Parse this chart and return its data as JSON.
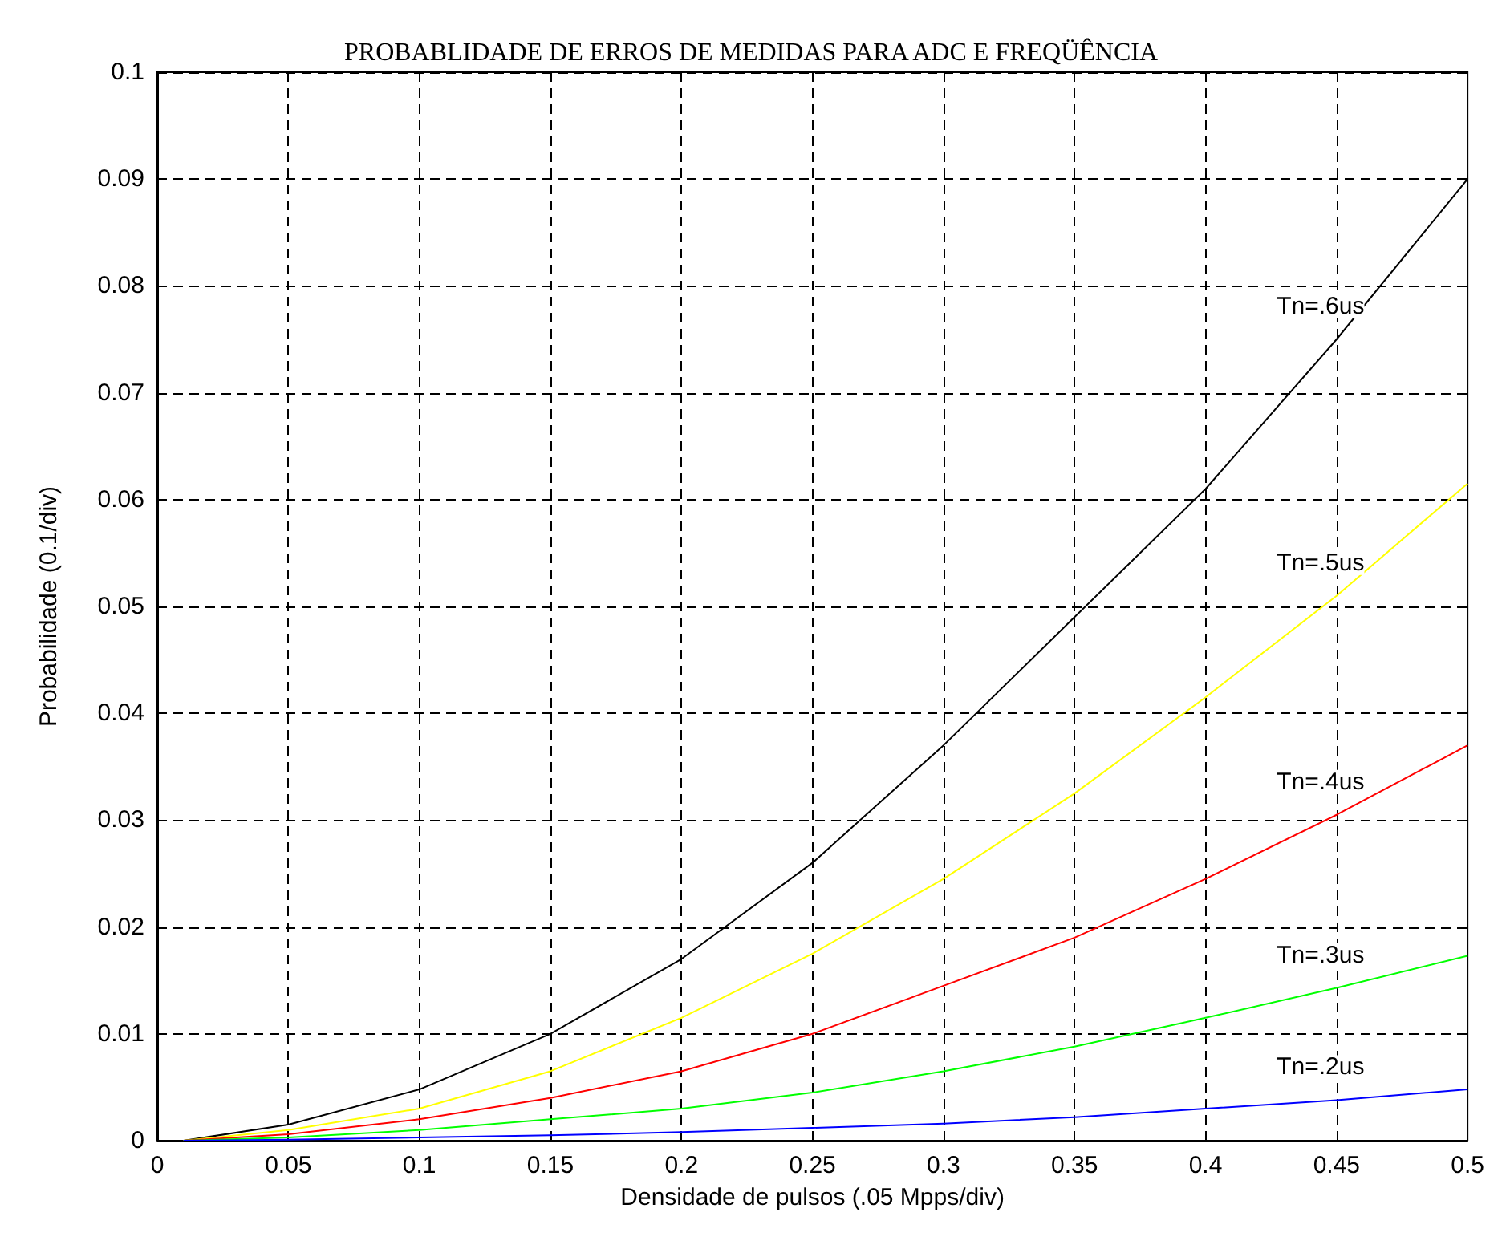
{
  "chart_data": {
    "type": "line",
    "title": "PROBABLIDADE DE ERROS DE MEDIDAS PARA ADC E FREQÜÊNCIA",
    "xlabel": "Densidade de pulsos (.05 Mpps/div)",
    "ylabel": "Probabilidade (0.1/div)",
    "x": [
      0.01,
      0.05,
      0.1,
      0.15,
      0.2,
      0.25,
      0.3,
      0.35,
      0.4,
      0.45,
      0.5
    ],
    "series": [
      {
        "name": "Tn=.6us",
        "color": "#000000",
        "values": [
          0,
          0.0015,
          0.0048,
          0.01,
          0.017,
          0.026,
          0.037,
          0.049,
          0.061,
          0.075,
          0.09
        ]
      },
      {
        "name": "Tn=.5us",
        "color": "#ffff00",
        "values": [
          0,
          0.001,
          0.003,
          0.0065,
          0.0115,
          0.0175,
          0.0245,
          0.0325,
          0.0415,
          0.051,
          0.0615
        ]
      },
      {
        "name": "Tn=.4us",
        "color": "#ff0000",
        "values": [
          0,
          0.0006,
          0.002,
          0.004,
          0.0065,
          0.01,
          0.0145,
          0.019,
          0.0245,
          0.0305,
          0.037
        ]
      },
      {
        "name": "Tn=.3us",
        "color": "#00ff00",
        "values": [
          0,
          0.0003,
          0.001,
          0.002,
          0.003,
          0.0045,
          0.0065,
          0.0088,
          0.0115,
          0.0143,
          0.0173
        ]
      },
      {
        "name": "Tn=.2us",
        "color": "#0000ff",
        "values": [
          0,
          0.0001,
          0.0003,
          0.0005,
          0.0008,
          0.0012,
          0.0016,
          0.0022,
          0.003,
          0.0038,
          0.0048
        ]
      }
    ],
    "xlim": [
      0,
      0.5
    ],
    "xticks": [
      0,
      0.05,
      0.1,
      0.15,
      0.2,
      0.25,
      0.3,
      0.35,
      0.4,
      0.45,
      0.5
    ],
    "ylim": [
      0,
      0.1
    ],
    "yticks": [
      0,
      0.01,
      0.02,
      0.03,
      0.04,
      0.05,
      0.06,
      0.07,
      0.08,
      0.09,
      0.1
    ],
    "grid": true,
    "marker": "none",
    "line_style": "solid"
  }
}
